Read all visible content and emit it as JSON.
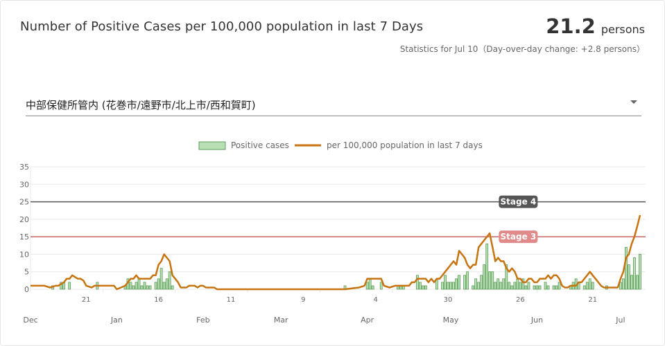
{
  "header": {
    "title": "Number of Positive Cases per 100,000 population in last 7 Days",
    "value": "21.2",
    "unit": "persons",
    "note": "Statistics for Jul 10（Day-over-day change: +2.8 persons）"
  },
  "selector": {
    "selected": "中部保健所管内 (花巻市/遠野市/北上市/西和賀町)"
  },
  "colors": {
    "bar_fill": "#b9dfb4",
    "bar_stroke": "#5b9b58",
    "line": "#c7730f",
    "stage4": "#555555",
    "stage3": "#c46262",
    "stage3_label_bg": "#e08a8a",
    "stage4_label_bg": "#555555",
    "grid": "#e8e8e8",
    "axis_text": "#666666"
  },
  "chart_data": {
    "type": "bar",
    "legend": {
      "placement": "top-center",
      "items": [
        "Positive cases",
        "per 100,000 population in last 7 days"
      ]
    },
    "y_ticks": [
      "0",
      "5",
      "10",
      "15",
      "20",
      "25",
      "30",
      "35"
    ],
    "ylim": [
      0,
      35
    ],
    "x_day_labels": [
      {
        "day": 20,
        "text": "21"
      },
      {
        "day": 46,
        "text": "16"
      },
      {
        "day": 72,
        "text": "11"
      },
      {
        "day": 98,
        "text": "9"
      },
      {
        "day": 124,
        "text": "4"
      },
      {
        "day": 150,
        "text": "30"
      },
      {
        "day": 176,
        "text": "26"
      },
      {
        "day": 202,
        "text": "21"
      }
    ],
    "x_month_labels": [
      {
        "day": 0,
        "text": "Dec"
      },
      {
        "day": 31,
        "text": "Jan"
      },
      {
        "day": 62,
        "text": "Feb"
      },
      {
        "day": 90,
        "text": "Mar"
      },
      {
        "day": 121,
        "text": "Apr"
      },
      {
        "day": 151,
        "text": "May"
      },
      {
        "day": 182,
        "text": "Jun"
      },
      {
        "day": 212,
        "text": "Jul"
      }
    ],
    "reference_lines": [
      {
        "name": "Stage 4",
        "value": 25
      },
      {
        "name": "Stage 3",
        "value": 15
      }
    ],
    "date_range": [
      "Dec 1",
      "Jul 10"
    ],
    "series": [
      {
        "name": "Positive cases",
        "type": "bar",
        "points": [
          [
            8,
            1
          ],
          [
            11,
            2
          ],
          [
            12,
            2
          ],
          [
            14,
            2
          ],
          [
            24,
            2
          ],
          [
            34,
            1
          ],
          [
            35,
            3
          ],
          [
            36,
            2
          ],
          [
            37,
            1
          ],
          [
            38,
            2
          ],
          [
            39,
            3
          ],
          [
            40,
            1
          ],
          [
            41,
            2
          ],
          [
            42,
            1
          ],
          [
            43,
            1
          ],
          [
            45,
            2
          ],
          [
            46,
            3
          ],
          [
            47,
            6
          ],
          [
            48,
            2
          ],
          [
            49,
            3
          ],
          [
            50,
            5
          ],
          [
            51,
            1
          ],
          [
            113,
            1
          ],
          [
            121,
            2
          ],
          [
            122,
            3
          ],
          [
            123,
            1
          ],
          [
            126,
            2
          ],
          [
            132,
            1
          ],
          [
            133,
            1
          ],
          [
            134,
            1
          ],
          [
            139,
            4
          ],
          [
            140,
            2
          ],
          [
            141,
            1
          ],
          [
            142,
            1
          ],
          [
            146,
            3
          ],
          [
            148,
            2
          ],
          [
            149,
            4
          ],
          [
            150,
            2
          ],
          [
            151,
            2
          ],
          [
            152,
            2
          ],
          [
            153,
            3
          ],
          [
            154,
            4
          ],
          [
            156,
            4
          ],
          [
            157,
            5
          ],
          [
            159,
            1
          ],
          [
            160,
            3
          ],
          [
            161,
            2
          ],
          [
            162,
            4
          ],
          [
            163,
            7
          ],
          [
            164,
            13
          ],
          [
            165,
            5
          ],
          [
            166,
            5
          ],
          [
            167,
            2
          ],
          [
            168,
            3
          ],
          [
            169,
            2
          ],
          [
            170,
            3
          ],
          [
            171,
            7
          ],
          [
            172,
            2
          ],
          [
            173,
            1
          ],
          [
            174,
            2
          ],
          [
            175,
            3
          ],
          [
            176,
            2
          ],
          [
            177,
            3
          ],
          [
            178,
            1
          ],
          [
            179,
            2
          ],
          [
            181,
            1
          ],
          [
            182,
            1
          ],
          [
            183,
            1
          ],
          [
            185,
            2
          ],
          [
            186,
            1
          ],
          [
            188,
            1
          ],
          [
            189,
            1
          ],
          [
            190,
            2
          ],
          [
            194,
            1
          ],
          [
            195,
            2
          ],
          [
            196,
            3
          ],
          [
            197,
            2
          ],
          [
            199,
            1
          ],
          [
            200,
            2
          ],
          [
            201,
            3
          ],
          [
            202,
            2
          ],
          [
            207,
            1
          ],
          [
            212,
            2
          ],
          [
            213,
            3
          ],
          [
            214,
            12
          ],
          [
            215,
            7
          ],
          [
            216,
            4
          ],
          [
            217,
            9
          ],
          [
            218,
            4
          ],
          [
            219,
            10
          ]
        ]
      },
      {
        "name": "per 100,000 population in last 7 days",
        "type": "line",
        "points": [
          [
            0,
            1
          ],
          [
            5,
            1
          ],
          [
            7,
            0.5
          ],
          [
            9,
            1
          ],
          [
            10,
            1
          ],
          [
            12,
            2
          ],
          [
            13,
            3
          ],
          [
            14,
            3
          ],
          [
            15,
            4
          ],
          [
            16,
            3.5
          ],
          [
            17,
            3
          ],
          [
            18,
            3
          ],
          [
            19,
            2.5
          ],
          [
            20,
            1
          ],
          [
            22,
            0.5
          ],
          [
            23,
            1
          ],
          [
            27,
            1
          ],
          [
            30,
            1
          ],
          [
            31,
            0
          ],
          [
            34,
            1
          ],
          [
            35,
            2
          ],
          [
            36,
            3
          ],
          [
            37,
            3
          ],
          [
            38,
            4
          ],
          [
            39,
            3
          ],
          [
            40,
            3
          ],
          [
            42,
            3
          ],
          [
            43,
            3
          ],
          [
            44,
            4
          ],
          [
            45,
            4
          ],
          [
            46,
            7
          ],
          [
            47,
            8
          ],
          [
            48,
            10
          ],
          [
            49,
            9
          ],
          [
            50,
            8
          ],
          [
            51,
            4
          ],
          [
            52,
            3
          ],
          [
            53,
            2
          ],
          [
            54,
            0.5
          ],
          [
            56,
            0.5
          ],
          [
            57,
            1
          ],
          [
            59,
            1
          ],
          [
            60,
            0.5
          ],
          [
            61,
            1
          ],
          [
            62,
            1
          ],
          [
            63,
            0.5
          ],
          [
            66,
            0.5
          ],
          [
            67,
            0
          ],
          [
            113,
            0
          ],
          [
            118,
            0.5
          ],
          [
            120,
            1
          ],
          [
            121,
            3
          ],
          [
            122,
            3
          ],
          [
            123,
            3
          ],
          [
            126,
            3
          ],
          [
            127,
            1
          ],
          [
            129,
            0.5
          ],
          [
            131,
            1
          ],
          [
            133,
            1
          ],
          [
            134,
            1
          ],
          [
            136,
            1
          ],
          [
            137,
            2
          ],
          [
            138,
            2
          ],
          [
            139,
            3
          ],
          [
            142,
            3
          ],
          [
            143,
            2
          ],
          [
            144,
            3
          ],
          [
            145,
            2
          ],
          [
            146,
            3
          ],
          [
            147,
            3
          ],
          [
            148,
            4
          ],
          [
            149,
            5
          ],
          [
            150,
            6
          ],
          [
            151,
            7
          ],
          [
            152,
            8
          ],
          [
            153,
            7
          ],
          [
            154,
            11
          ],
          [
            155,
            10
          ],
          [
            156,
            9
          ],
          [
            157,
            7
          ],
          [
            158,
            6
          ],
          [
            159,
            7
          ],
          [
            160,
            7
          ],
          [
            161,
            12
          ],
          [
            162,
            13
          ],
          [
            163,
            14
          ],
          [
            164,
            15
          ],
          [
            165,
            16
          ],
          [
            166,
            12
          ],
          [
            167,
            8
          ],
          [
            168,
            9
          ],
          [
            169,
            8
          ],
          [
            170,
            8
          ],
          [
            171,
            6
          ],
          [
            172,
            5
          ],
          [
            173,
            6
          ],
          [
            174,
            5
          ],
          [
            175,
            3
          ],
          [
            176,
            3
          ],
          [
            177,
            2
          ],
          [
            178,
            2
          ],
          [
            179,
            3
          ],
          [
            180,
            3
          ],
          [
            181,
            2
          ],
          [
            182,
            2
          ],
          [
            183,
            3
          ],
          [
            184,
            3
          ],
          [
            185,
            3
          ],
          [
            186,
            4
          ],
          [
            187,
            3
          ],
          [
            188,
            4
          ],
          [
            189,
            4
          ],
          [
            190,
            3
          ],
          [
            191,
            1
          ],
          [
            192,
            0.5
          ],
          [
            193,
            0.5
          ],
          [
            194,
            1
          ],
          [
            196,
            1
          ],
          [
            197,
            2
          ],
          [
            198,
            2
          ],
          [
            199,
            3
          ],
          [
            200,
            4
          ],
          [
            201,
            5
          ],
          [
            202,
            4
          ],
          [
            203,
            3
          ],
          [
            204,
            2
          ],
          [
            205,
            1
          ],
          [
            206,
            0.5
          ],
          [
            210,
            0.5
          ],
          [
            211,
            0.5
          ],
          [
            212,
            3
          ],
          [
            213,
            5
          ],
          [
            214,
            9
          ],
          [
            215,
            10
          ],
          [
            216,
            13
          ],
          [
            217,
            15
          ],
          [
            218,
            18
          ],
          [
            219,
            21.2
          ]
        ]
      }
    ]
  }
}
